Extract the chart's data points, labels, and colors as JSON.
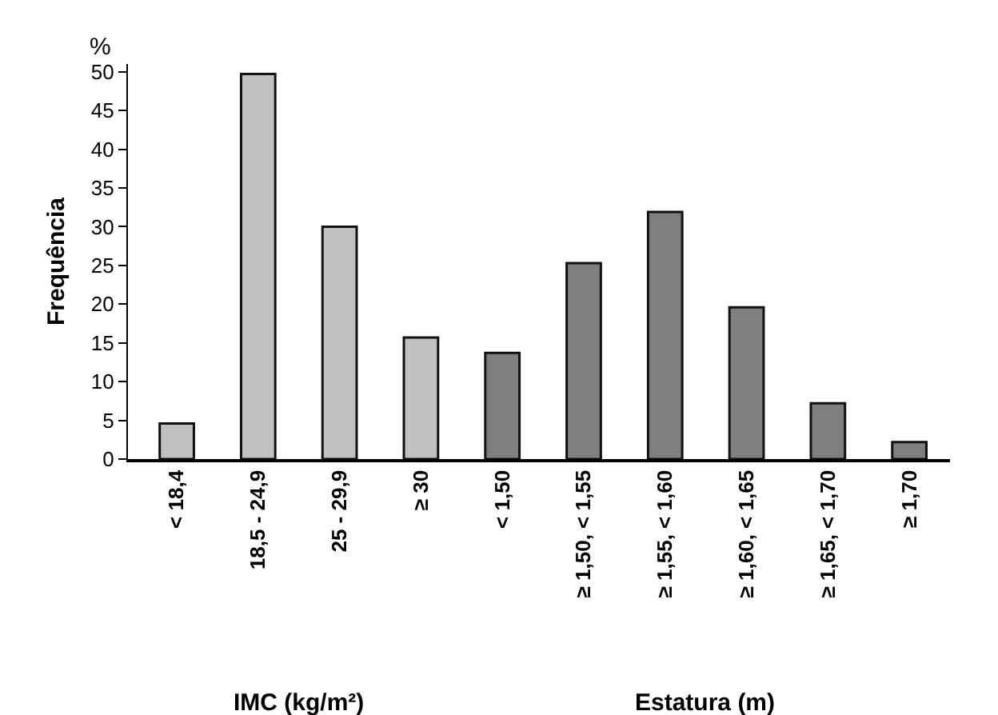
{
  "chart_data": {
    "type": "bar",
    "ylabel": "Frequência",
    "categories": [
      "< 18,4",
      "18,5 - 24,9",
      "25 - 29,9",
      "≥ 30",
      "< 1,50",
      "≥ 1,50, < 1,55",
      "≥ 1,55, < 1,60",
      "≥ 1,60, < 1,65",
      "≥ 1,65, < 1,70",
      "≥ 1,70"
    ],
    "series": [
      {
        "color": "#c0c0c0",
        "values": [
          4.6,
          49.7,
          30.0,
          15.7,
          null,
          null,
          null,
          null,
          null,
          null
        ]
      },
      {
        "color": "#7f7f7f",
        "values": [
          null,
          null,
          null,
          null,
          13.7,
          25.3,
          31.9,
          19.6,
          7.2,
          2.2
        ]
      }
    ],
    "ylim": [
      0,
      51
    ],
    "yticks": [
      0,
      5,
      10,
      15,
      20,
      25,
      30,
      35,
      40,
      45,
      50
    ],
    "grid": false,
    "annotations": [
      "%",
      "IMC (kg/m²)",
      "Estatura (m)"
    ]
  }
}
